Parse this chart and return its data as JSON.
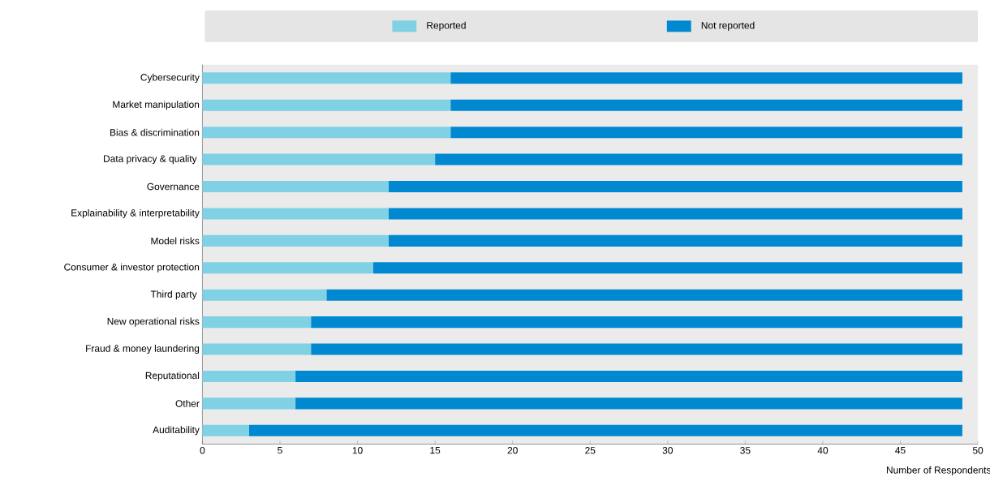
{
  "chart_data": {
    "type": "bar",
    "orientation": "horizontal",
    "stacked": true,
    "xlabel": "Number of Respondents",
    "categories": [
      "Cybersecurity",
      "Market manipulation",
      "Bias & discrimination",
      "Data privacy & quality ",
      "Governance",
      "Explainability & interpretability",
      "Model risks",
      "Consumer & investor protection",
      "Third party ",
      "New operational risks",
      "Fraud & money laundering",
      "Reputational",
      "Other",
      "Auditability"
    ],
    "series": [
      {
        "name": "Reported",
        "color": "#7fd1e3",
        "values": [
          16,
          16,
          16,
          15,
          12,
          12,
          12,
          11,
          8,
          7,
          7,
          6,
          6,
          3
        ]
      },
      {
        "name": "Not reported",
        "color": "#0088d1",
        "values": [
          33,
          33,
          33,
          34,
          37,
          37,
          37,
          38,
          41,
          42,
          42,
          43,
          43,
          46
        ]
      }
    ],
    "xlim": [
      0,
      50
    ],
    "xticks": [
      0,
      5,
      10,
      15,
      20,
      25,
      30,
      35,
      40,
      45,
      50
    ],
    "legend": "top",
    "grid": false
  }
}
